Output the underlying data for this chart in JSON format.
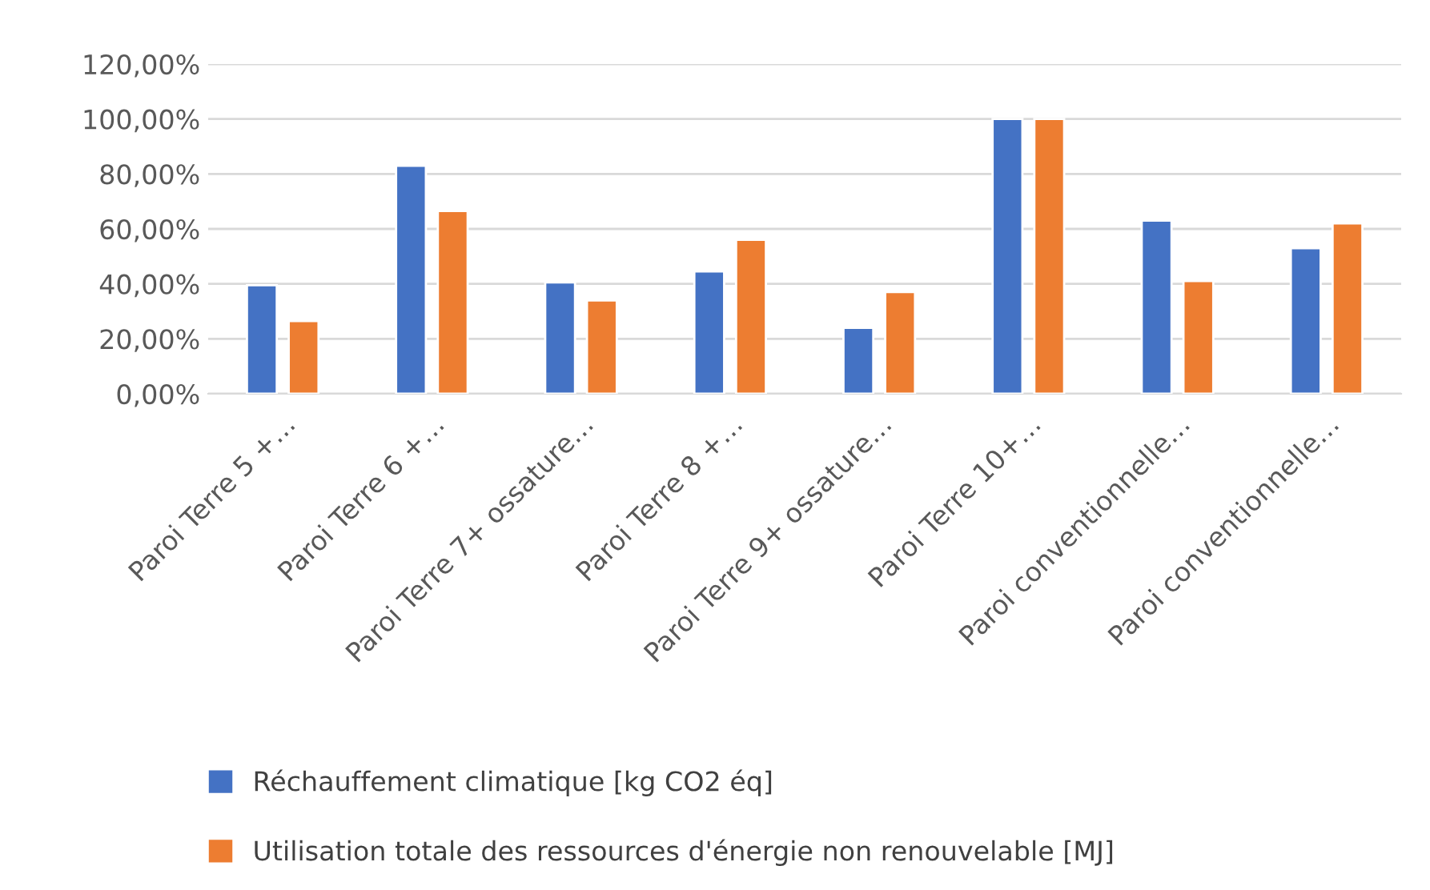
{
  "chart_data": {
    "type": "bar",
    "categories": [
      "Paroi Terre 5 +…",
      "Paroi Terre 6 +…",
      "Paroi Terre 7+ ossature…",
      "Paroi Terre 8 +…",
      "Paroi Terre 9+ ossature…",
      "Paroi Terre 10+…",
      "Paroi conventionnelle…",
      "Paroi conventionnelle…"
    ],
    "series": [
      {
        "name": "Réchauffement climatique [kg CO2 éq]",
        "color": "#4472c4",
        "values": [
          39.5,
          83,
          40.5,
          44.5,
          24,
          100,
          63,
          53
        ]
      },
      {
        "name": "Utilisation totale des ressources d'énergie non renouvelable [MJ]",
        "color": "#ed7d31",
        "values": [
          26.5,
          66.5,
          34,
          56,
          37,
          100,
          41,
          62
        ]
      }
    ],
    "ylim": [
      0,
      120
    ],
    "yticks": [
      {
        "value": 0,
        "label": "0,00%"
      },
      {
        "value": 20,
        "label": "20,00%"
      },
      {
        "value": 40,
        "label": "40,00%"
      },
      {
        "value": 60,
        "label": "60,00%"
      },
      {
        "value": 80,
        "label": "80,00%"
      },
      {
        "value": 100,
        "label": "100,00%"
      },
      {
        "value": 120,
        "label": "120,00%"
      }
    ],
    "grid": "y",
    "legend": "bottom"
  }
}
